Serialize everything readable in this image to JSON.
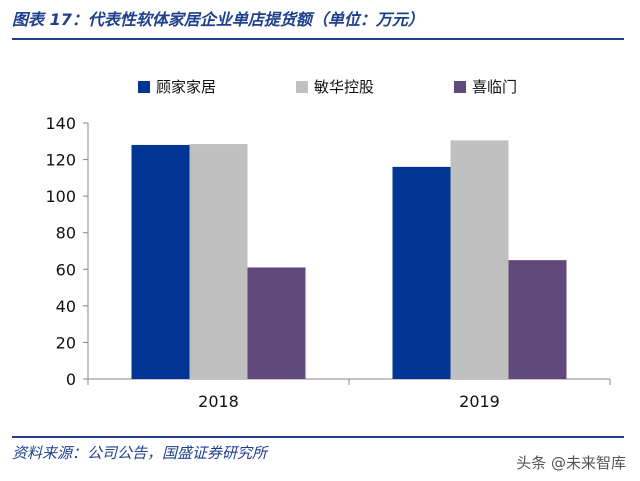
{
  "header": {
    "title": "图表 17：代表性软体家居企业单店提货额（单位：万元）"
  },
  "footer": {
    "source": "资料来源：公司公告，国盛证券研究所",
    "watermark": "头条 @未来智库"
  },
  "chart_data": {
    "type": "bar",
    "title": "",
    "xlabel": "",
    "ylabel": "",
    "categories": [
      "2018",
      "2019"
    ],
    "series": [
      {
        "name": "顾家家居",
        "values": [
          128,
          116
        ],
        "color": "#003594"
      },
      {
        "name": "敏华控股",
        "values": [
          128.5,
          130.5
        ],
        "color": "#c0c0c0"
      },
      {
        "name": "喜临门",
        "values": [
          61,
          65
        ],
        "color": "#604a7b"
      }
    ],
    "ylim": [
      0,
      140
    ],
    "yticks": [
      0,
      20,
      40,
      60,
      80,
      100,
      120,
      140
    ],
    "grid": false,
    "legend_position": "top"
  }
}
